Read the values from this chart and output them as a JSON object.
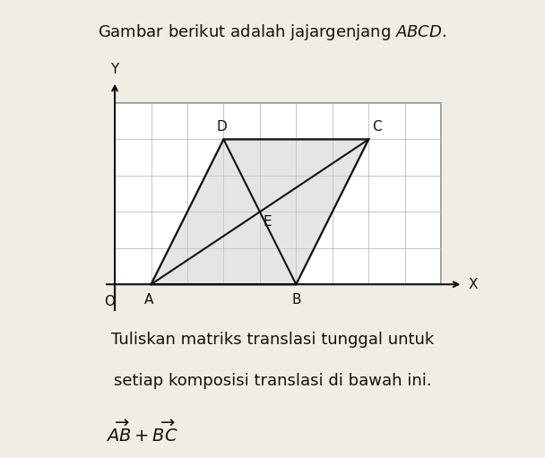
{
  "title": "Gambar berikut adalah jajargenjang $ABCD$.",
  "subtitle_line1": "Tuliskan matriks translasi tunggal untuk",
  "subtitle_line2": "setiap komposisi translasi di bawah ini.",
  "formula": "$\\overrightarrow{AB} + \\overrightarrow{BC}$",
  "A": [
    1,
    1
  ],
  "B": [
    5,
    1
  ],
  "C": [
    7,
    5
  ],
  "D": [
    3,
    5
  ],
  "grid_color": "#bbbbbb",
  "parallelogram_fill": "#cccccc",
  "parallelogram_alpha": 0.5,
  "line_color": "#111111",
  "axis_color": "#111111",
  "background_color": "#f0ede4",
  "box_color": "#888888",
  "text_color": "#111111",
  "label_fontsize": 11,
  "title_fontsize": 13,
  "text_fontsize": 13
}
